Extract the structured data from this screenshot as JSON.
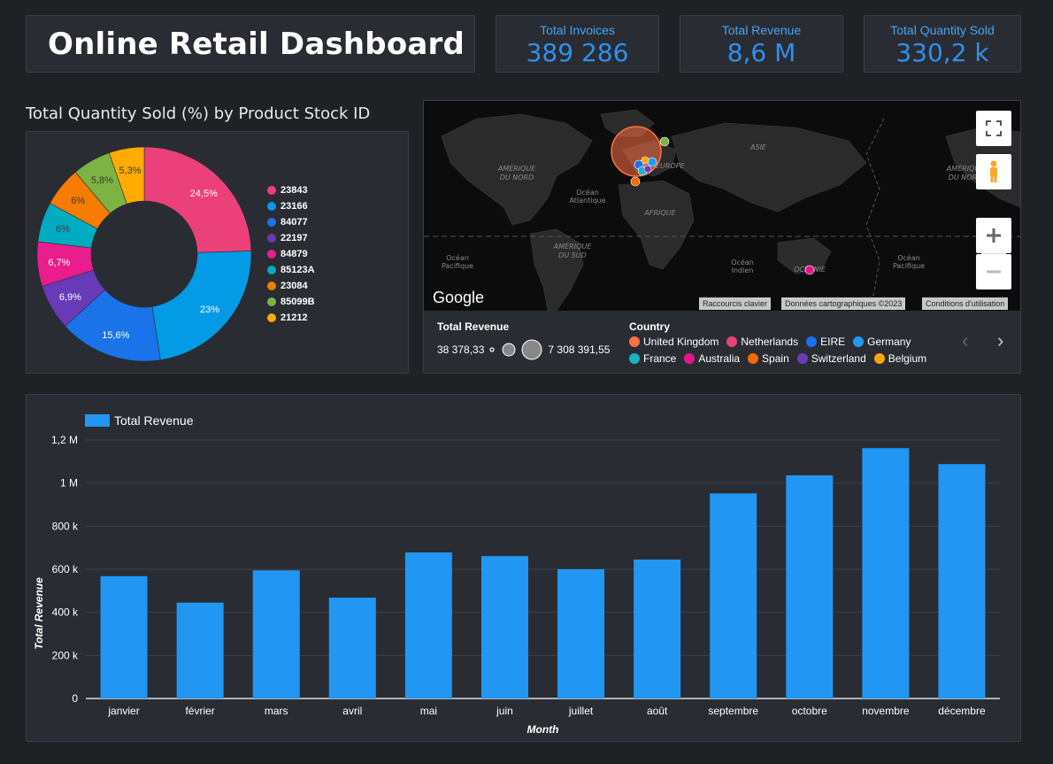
{
  "header": {
    "title": "Online Retail Dashboard"
  },
  "kpis": [
    {
      "label": "Total Invoices",
      "value": "389 286"
    },
    {
      "label": "Total Revenue",
      "value": "8,6 M"
    },
    {
      "label": "Total Quantity Sold",
      "value": "330,2 k"
    }
  ],
  "pie_section": {
    "title": "Total Quantity Sold (%) by Product Stock ID"
  },
  "map": {
    "labels": {
      "north_america": "AMÉRIQUE DU NORD",
      "south_america": "AMÉRIQUE DU SUD",
      "atlantic": "Océan Atlantique",
      "europe": "EUROPE",
      "asia": "ASIE",
      "africa": "AFRIQUE",
      "pacific": "Océan Pacifique",
      "indian": "Océan Indien",
      "oceania": "OCÉANIE",
      "north_america_right": "AMÉRIQUE DU NORD",
      "pacific_right": "Océan Pacifique"
    },
    "brand": "Google",
    "footer": [
      "Raccourcis clavier",
      "Données cartographiques ©2023",
      "Conditions d'utilisation"
    ],
    "size_legend": {
      "title": "Total Revenue",
      "min": "38 378,33",
      "max": "7 308 391,55"
    },
    "country_legend": {
      "title": "Country",
      "items": [
        {
          "name": "United Kingdom",
          "color": "#ff7043"
        },
        {
          "name": "Netherlands",
          "color": "#ec407a"
        },
        {
          "name": "EIRE",
          "color": "#1e6ff0"
        },
        {
          "name": "Germany",
          "color": "#1e9bf0"
        },
        {
          "name": "France",
          "color": "#17b3c4"
        },
        {
          "name": "Australia",
          "color": "#e6148c"
        },
        {
          "name": "Spain",
          "color": "#f56a00"
        },
        {
          "name": "Switzerland",
          "color": "#6c3bbd"
        },
        {
          "name": "Belgium",
          "color": "#ffa500"
        }
      ]
    },
    "nav": {
      "prev": "‹",
      "next": "›"
    }
  },
  "chart_data": [
    {
      "type": "pie",
      "title": "Total Quantity Sold (%) by Product Stock ID",
      "categories": [
        "23843",
        "23166",
        "84077",
        "22197",
        "84879",
        "85123A",
        "23084",
        "85099B",
        "21212"
      ],
      "values": [
        24.5,
        23,
        15.6,
        6.9,
        6.7,
        6,
        6,
        5.8,
        5.3
      ],
      "value_labels": [
        "24,5%",
        "23%",
        "15,6%",
        "6,9%",
        "6,7%",
        "6%",
        "6%",
        "5,8%",
        "5,3%"
      ],
      "colors": [
        "#ec407a",
        "#039be5",
        "#1a73e8",
        "#673ab7",
        "#e91e8c",
        "#00acc1",
        "#f57c00",
        "#7cb342",
        "#ffab00"
      ],
      "donut": true,
      "legend": "right"
    },
    {
      "type": "bar",
      "title": "",
      "categories": [
        "janvier",
        "février",
        "mars",
        "avril",
        "mai",
        "juin",
        "juillet",
        "août",
        "septembre",
        "octobre",
        "novembre",
        "décembre"
      ],
      "series": [
        {
          "name": "Total Revenue",
          "values": [
            568000,
            445000,
            595000,
            468000,
            678000,
            661000,
            600000,
            645000,
            952000,
            1036000,
            1162000,
            1088000
          ]
        }
      ],
      "xlabel": "Month",
      "ylabel": "Total Revenue",
      "ylim": [
        0,
        1200000
      ],
      "yticks": [
        "0",
        "200 k",
        "400 k",
        "600 k",
        "800 k",
        "1 M",
        "1,2 M"
      ],
      "grid": true,
      "legend": "top-left",
      "color": "#2196f3"
    }
  ]
}
